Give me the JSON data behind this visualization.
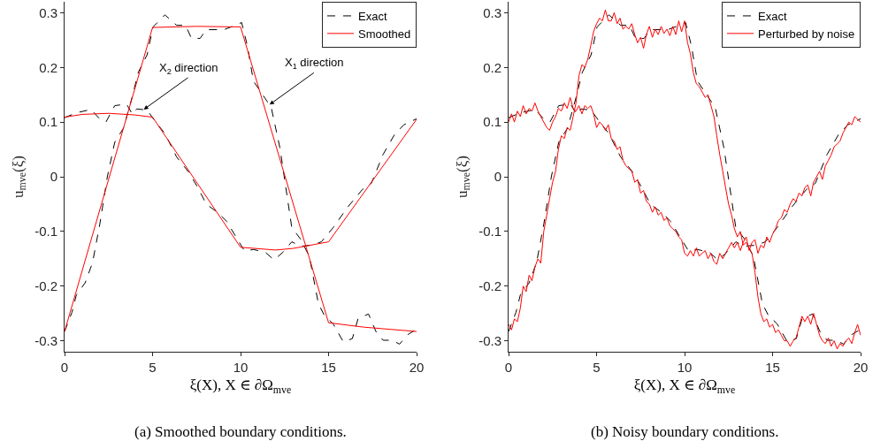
{
  "chart_data": [
    {
      "type": "line",
      "xlabel": "ξ(X), X ∈ ∂Ω$_{mve}$",
      "ylabel": "u$_{mve}$(ξ)",
      "xlim": [
        0,
        20
      ],
      "ylim": [
        -0.32,
        0.32
      ],
      "xticks": [
        0,
        5,
        10,
        15,
        20
      ],
      "yticks": [
        -0.3,
        -0.2,
        -0.1,
        0,
        0.1,
        0.2,
        0.3
      ],
      "grid": false,
      "legend": "top right",
      "series": [
        {
          "name": "Exact",
          "color": "#000000",
          "line_style": "dashed",
          "x": [
            0,
            0.42,
            0.67,
            1.17,
            1.59,
            2.0,
            2.43,
            2.85,
            3.35,
            3.86,
            4.19,
            4.69,
            5.03,
            5.7,
            6.37,
            6.87,
            7.21,
            7.7,
            8.05,
            9.05,
            9.72,
            10.06,
            10.39,
            10.73,
            11.4,
            11.74,
            12.24,
            12.91,
            13.41,
            13.91,
            14.42,
            14.75,
            15.26,
            15.84,
            16.35,
            16.68,
            17.27,
            17.69,
            18.1,
            18.6,
            19.03,
            19.53,
            20
          ],
          "values": [
            -0.283,
            -0.248,
            -0.216,
            -0.194,
            -0.157,
            -0.087,
            0,
            0.063,
            0.089,
            0.148,
            0.191,
            0.223,
            0.274,
            0.296,
            0.277,
            0.277,
            0.253,
            0.253,
            0.269,
            0.269,
            0.277,
            0.282,
            0.239,
            0.175,
            0.143,
            0.127,
            0.052,
            -0.093,
            -0.114,
            -0.146,
            -0.232,
            -0.253,
            -0.269,
            -0.302,
            -0.296,
            -0.259,
            -0.251,
            -0.283,
            -0.299,
            -0.299,
            -0.306,
            -0.288,
            -0.279
          ]
        },
        {
          "color": "#000000",
          "line_style": "dashed",
          "x": [
            0,
            0.67,
            1.51,
            1.93,
            2.35,
            2.85,
            3.52,
            3.86,
            4.1,
            4.69,
            5.11,
            5.7,
            6.37,
            7.04,
            7.54,
            8.05,
            8.72,
            9.22,
            9.72,
            10.23,
            10.73,
            11.4,
            11.9,
            12.41,
            12.91,
            13.41,
            14.08,
            14.59,
            15.26,
            16.1,
            16.93,
            17.43,
            18.1,
            18.78,
            19.28,
            20
          ],
          "values": [
            0.108,
            0.117,
            0.123,
            0.108,
            0.1,
            0.13,
            0.133,
            0.114,
            0.124,
            0.122,
            0.103,
            0.079,
            0.036,
            0.009,
            -0.018,
            -0.05,
            -0.066,
            -0.082,
            -0.109,
            -0.136,
            -0.133,
            -0.138,
            -0.152,
            -0.138,
            -0.119,
            -0.127,
            -0.125,
            -0.119,
            -0.093,
            -0.055,
            -0.023,
            -0.012,
            0.041,
            0.079,
            0.095,
            0.106
          ]
        },
        {
          "name": "Smoothed",
          "color": "#ff0000",
          "line_style": "solid",
          "x": [
            0,
            5,
            7.5,
            10,
            15,
            17,
            20
          ],
          "values": [
            -0.283,
            0.273,
            0.275,
            0.274,
            -0.267,
            -0.275,
            -0.283
          ]
        },
        {
          "color": "#ff0000",
          "line_style": "solid",
          "x": [
            0,
            1,
            2.5,
            4,
            5,
            10,
            12,
            13,
            15,
            20
          ],
          "values": [
            0.109,
            0.114,
            0.116,
            0.113,
            0.109,
            -0.129,
            -0.134,
            -0.131,
            -0.119,
            0.105
          ]
        }
      ],
      "annotations": [
        {
          "text": "X$_{2}$ direction",
          "x": 4.5,
          "y": 0.123
        },
        {
          "text": "X$_{1}$ direction",
          "x": 11.65,
          "y": 0.132
        },
        "(a) Smoothed boundary conditions."
      ]
    },
    {
      "type": "line",
      "xlabel": "ξ(X), X ∈ ∂Ω$_{mve}$",
      "ylabel": "u$_{mve}$(ξ)",
      "xlim": [
        0,
        20
      ],
      "ylim": [
        -0.32,
        0.32
      ],
      "xticks": [
        0,
        5,
        10,
        15,
        20
      ],
      "yticks": [
        -0.3,
        -0.2,
        -0.1,
        0,
        0.1,
        0.2,
        0.3
      ],
      "grid": false,
      "legend": "top right",
      "series": [
        {
          "name": "Exact",
          "color": "#000000",
          "line_style": "dashed",
          "x": [
            0,
            0.42,
            0.67,
            1.17,
            1.59,
            2.0,
            2.43,
            2.85,
            3.35,
            3.86,
            4.19,
            4.69,
            5.03,
            5.7,
            6.37,
            6.87,
            7.21,
            7.7,
            8.05,
            9.05,
            9.72,
            10.06,
            10.39,
            10.73,
            11.4,
            11.74,
            12.24,
            12.91,
            13.41,
            13.91,
            14.42,
            14.75,
            15.26,
            15.84,
            16.35,
            16.68,
            17.27,
            17.69,
            18.1,
            18.6,
            19.03,
            19.53,
            20
          ],
          "values": [
            -0.283,
            -0.248,
            -0.216,
            -0.194,
            -0.157,
            -0.087,
            0,
            0.063,
            0.089,
            0.148,
            0.191,
            0.223,
            0.274,
            0.296,
            0.277,
            0.277,
            0.253,
            0.253,
            0.269,
            0.269,
            0.277,
            0.282,
            0.239,
            0.175,
            0.143,
            0.127,
            0.052,
            -0.093,
            -0.114,
            -0.146,
            -0.232,
            -0.253,
            -0.269,
            -0.302,
            -0.296,
            -0.259,
            -0.251,
            -0.283,
            -0.299,
            -0.299,
            -0.306,
            -0.288,
            -0.279
          ]
        },
        {
          "color": "#000000",
          "line_style": "dashed",
          "x": [
            0,
            0.67,
            1.51,
            1.93,
            2.35,
            2.85,
            3.52,
            3.86,
            4.1,
            4.69,
            5.11,
            5.7,
            6.37,
            7.04,
            7.54,
            8.05,
            8.72,
            9.22,
            9.72,
            10.23,
            10.73,
            11.4,
            11.9,
            12.41,
            12.91,
            13.41,
            14.08,
            14.59,
            15.26,
            16.1,
            16.93,
            17.43,
            18.1,
            18.78,
            19.28,
            20
          ],
          "values": [
            0.108,
            0.117,
            0.123,
            0.108,
            0.1,
            0.13,
            0.133,
            0.114,
            0.124,
            0.122,
            0.103,
            0.079,
            0.036,
            0.009,
            -0.018,
            -0.05,
            -0.066,
            -0.082,
            -0.109,
            -0.136,
            -0.133,
            -0.138,
            -0.152,
            -0.138,
            -0.119,
            -0.127,
            -0.125,
            -0.119,
            -0.093,
            -0.055,
            -0.023,
            -0.012,
            0.041,
            0.079,
            0.095,
            0.106
          ]
        },
        {
          "name": "Perturbed by noise",
          "color": "#ff0000",
          "line_style": "solid",
          "x": [
            0,
            0.17,
            0.33,
            0.5,
            0.67,
            0.83,
            1,
            1.17,
            1.33,
            1.5,
            1.67,
            1.83,
            2,
            2.17,
            2.33,
            2.5,
            2.67,
            2.83,
            3,
            3.17,
            3.33,
            3.5,
            3.67,
            3.83,
            4,
            4.17,
            4.33,
            4.5,
            4.67,
            4.83,
            5,
            5.17,
            5.33,
            5.5,
            5.67,
            5.83,
            6,
            6.17,
            6.33,
            6.5,
            6.67,
            6.83,
            7,
            7.17,
            7.33,
            7.5,
            7.67,
            7.83,
            8,
            8.17,
            8.33,
            8.5,
            8.67,
            8.83,
            9,
            9.17,
            9.33,
            9.5,
            9.67,
            9.83,
            10,
            10.17,
            10.33,
            10.5,
            10.67,
            10.83,
            11,
            11.17,
            11.33,
            11.5,
            11.67,
            11.83,
            12,
            12.17,
            12.33,
            12.5,
            12.67,
            12.83,
            13,
            13.17,
            13.33,
            13.5,
            13.67,
            13.83,
            14,
            14.17,
            14.33,
            14.5,
            14.67,
            14.83,
            15,
            15.17,
            15.33,
            15.5,
            15.67,
            15.83,
            16,
            16.17,
            16.33,
            16.5,
            16.67,
            16.83,
            17,
            17.17,
            17.33,
            17.5,
            17.67,
            17.83,
            18,
            18.17,
            18.33,
            18.5,
            18.67,
            18.83,
            19,
            19.17,
            19.33,
            19.5,
            19.67,
            19.83,
            20
          ],
          "values": [
            -0.27,
            -0.28,
            -0.26,
            -0.265,
            -0.24,
            -0.2,
            -0.21,
            -0.18,
            -0.19,
            -0.165,
            -0.15,
            -0.158,
            -0.1,
            -0.07,
            -0.04,
            -0.01,
            0.01,
            0.05,
            0.075,
            0.07,
            0.09,
            0.085,
            0.11,
            0.135,
            0.185,
            0.205,
            0.2,
            0.215,
            0.24,
            0.265,
            0.28,
            0.29,
            0.285,
            0.305,
            0.285,
            0.285,
            0.3,
            0.28,
            0.29,
            0.27,
            0.275,
            0.27,
            0.28,
            0.26,
            0.245,
            0.255,
            0.235,
            0.26,
            0.275,
            0.255,
            0.27,
            0.26,
            0.275,
            0.262,
            0.27,
            0.258,
            0.275,
            0.26,
            0.285,
            0.265,
            0.285,
            0.245,
            0.225,
            0.19,
            0.17,
            0.165,
            0.155,
            0.145,
            0.15,
            0.13,
            0.11,
            0.075,
            0.04,
            0.01,
            -0.02,
            -0.05,
            -0.07,
            -0.095,
            -0.11,
            -0.1,
            -0.125,
            -0.12,
            -0.13,
            -0.14,
            -0.175,
            -0.22,
            -0.25,
            -0.265,
            -0.26,
            -0.275,
            -0.27,
            -0.285,
            -0.28,
            -0.29,
            -0.3,
            -0.3,
            -0.31,
            -0.3,
            -0.295,
            -0.275,
            -0.255,
            -0.265,
            -0.255,
            -0.27,
            -0.25,
            -0.27,
            -0.29,
            -0.3,
            -0.305,
            -0.295,
            -0.31,
            -0.3,
            -0.315,
            -0.305,
            -0.31,
            -0.3,
            -0.295,
            -0.305,
            -0.285,
            -0.27,
            -0.29
          ]
        },
        {
          "color": "#ff0000",
          "line_style": "solid",
          "x": [
            0,
            0.17,
            0.33,
            0.5,
            0.67,
            0.83,
            1,
            1.17,
            1.33,
            1.5,
            1.67,
            1.83,
            2,
            2.17,
            2.33,
            2.5,
            2.67,
            2.83,
            3,
            3.17,
            3.33,
            3.5,
            3.67,
            3.83,
            4,
            4.17,
            4.33,
            4.5,
            4.67,
            4.83,
            5,
            5.17,
            5.33,
            5.5,
            5.67,
            5.83,
            6,
            6.17,
            6.33,
            6.5,
            6.67,
            6.83,
            7,
            7.17,
            7.33,
            7.5,
            7.67,
            7.83,
            8,
            8.17,
            8.33,
            8.5,
            8.67,
            8.83,
            9,
            9.17,
            9.33,
            9.5,
            9.67,
            9.83,
            10,
            10.17,
            10.33,
            10.5,
            10.67,
            10.83,
            11,
            11.17,
            11.33,
            11.5,
            11.67,
            11.83,
            12,
            12.17,
            12.33,
            12.5,
            12.67,
            12.83,
            13,
            13.17,
            13.33,
            13.5,
            13.67,
            13.83,
            14,
            14.17,
            14.33,
            14.5,
            14.67,
            14.83,
            15,
            15.17,
            15.33,
            15.5,
            15.67,
            15.83,
            16,
            16.17,
            16.33,
            16.5,
            16.67,
            16.83,
            17,
            17.17,
            17.33,
            17.5,
            17.67,
            17.83,
            18,
            18.17,
            18.33,
            18.5,
            18.67,
            18.83,
            19,
            19.17,
            19.33,
            19.5,
            19.67,
            19.83,
            20
          ],
          "values": [
            0.1,
            0.115,
            0.1,
            0.12,
            0.11,
            0.13,
            0.115,
            0.125,
            0.12,
            0.135,
            0.12,
            0.11,
            0.1,
            0.09,
            0.085,
            0.1,
            0.11,
            0.125,
            0.12,
            0.135,
            0.125,
            0.145,
            0.125,
            0.12,
            0.13,
            0.115,
            0.13,
            0.125,
            0.13,
            0.115,
            0.09,
            0.1,
            0.095,
            0.085,
            0.095,
            0.07,
            0.065,
            0.05,
            0.055,
            0.03,
            0.02,
            0.015,
            0.01,
            -0.01,
            -0.005,
            -0.03,
            -0.025,
            -0.045,
            -0.05,
            -0.065,
            -0.055,
            -0.07,
            -0.065,
            -0.08,
            -0.075,
            -0.09,
            -0.095,
            -0.1,
            -0.11,
            -0.115,
            -0.14,
            -0.145,
            -0.135,
            -0.145,
            -0.13,
            -0.145,
            -0.14,
            -0.135,
            -0.15,
            -0.14,
            -0.155,
            -0.16,
            -0.14,
            -0.15,
            -0.14,
            -0.13,
            -0.12,
            -0.13,
            -0.12,
            -0.135,
            -0.12,
            -0.11,
            -0.135,
            -0.12,
            -0.115,
            -0.14,
            -0.125,
            -0.13,
            -0.11,
            -0.12,
            -0.105,
            -0.095,
            -0.08,
            -0.075,
            -0.06,
            -0.065,
            -0.05,
            -0.04,
            -0.045,
            -0.03,
            -0.035,
            -0.02,
            -0.015,
            -0.035,
            -0.01,
            0,
            0.01,
            -0.005,
            0.02,
            0.03,
            0.04,
            0.055,
            0.06,
            0.065,
            0.08,
            0.09,
            0.1,
            0.095,
            0.11,
            0.105,
            0.1
          ]
        }
      ],
      "annotations": [
        "(b) Noisy boundary conditions."
      ]
    }
  ]
}
